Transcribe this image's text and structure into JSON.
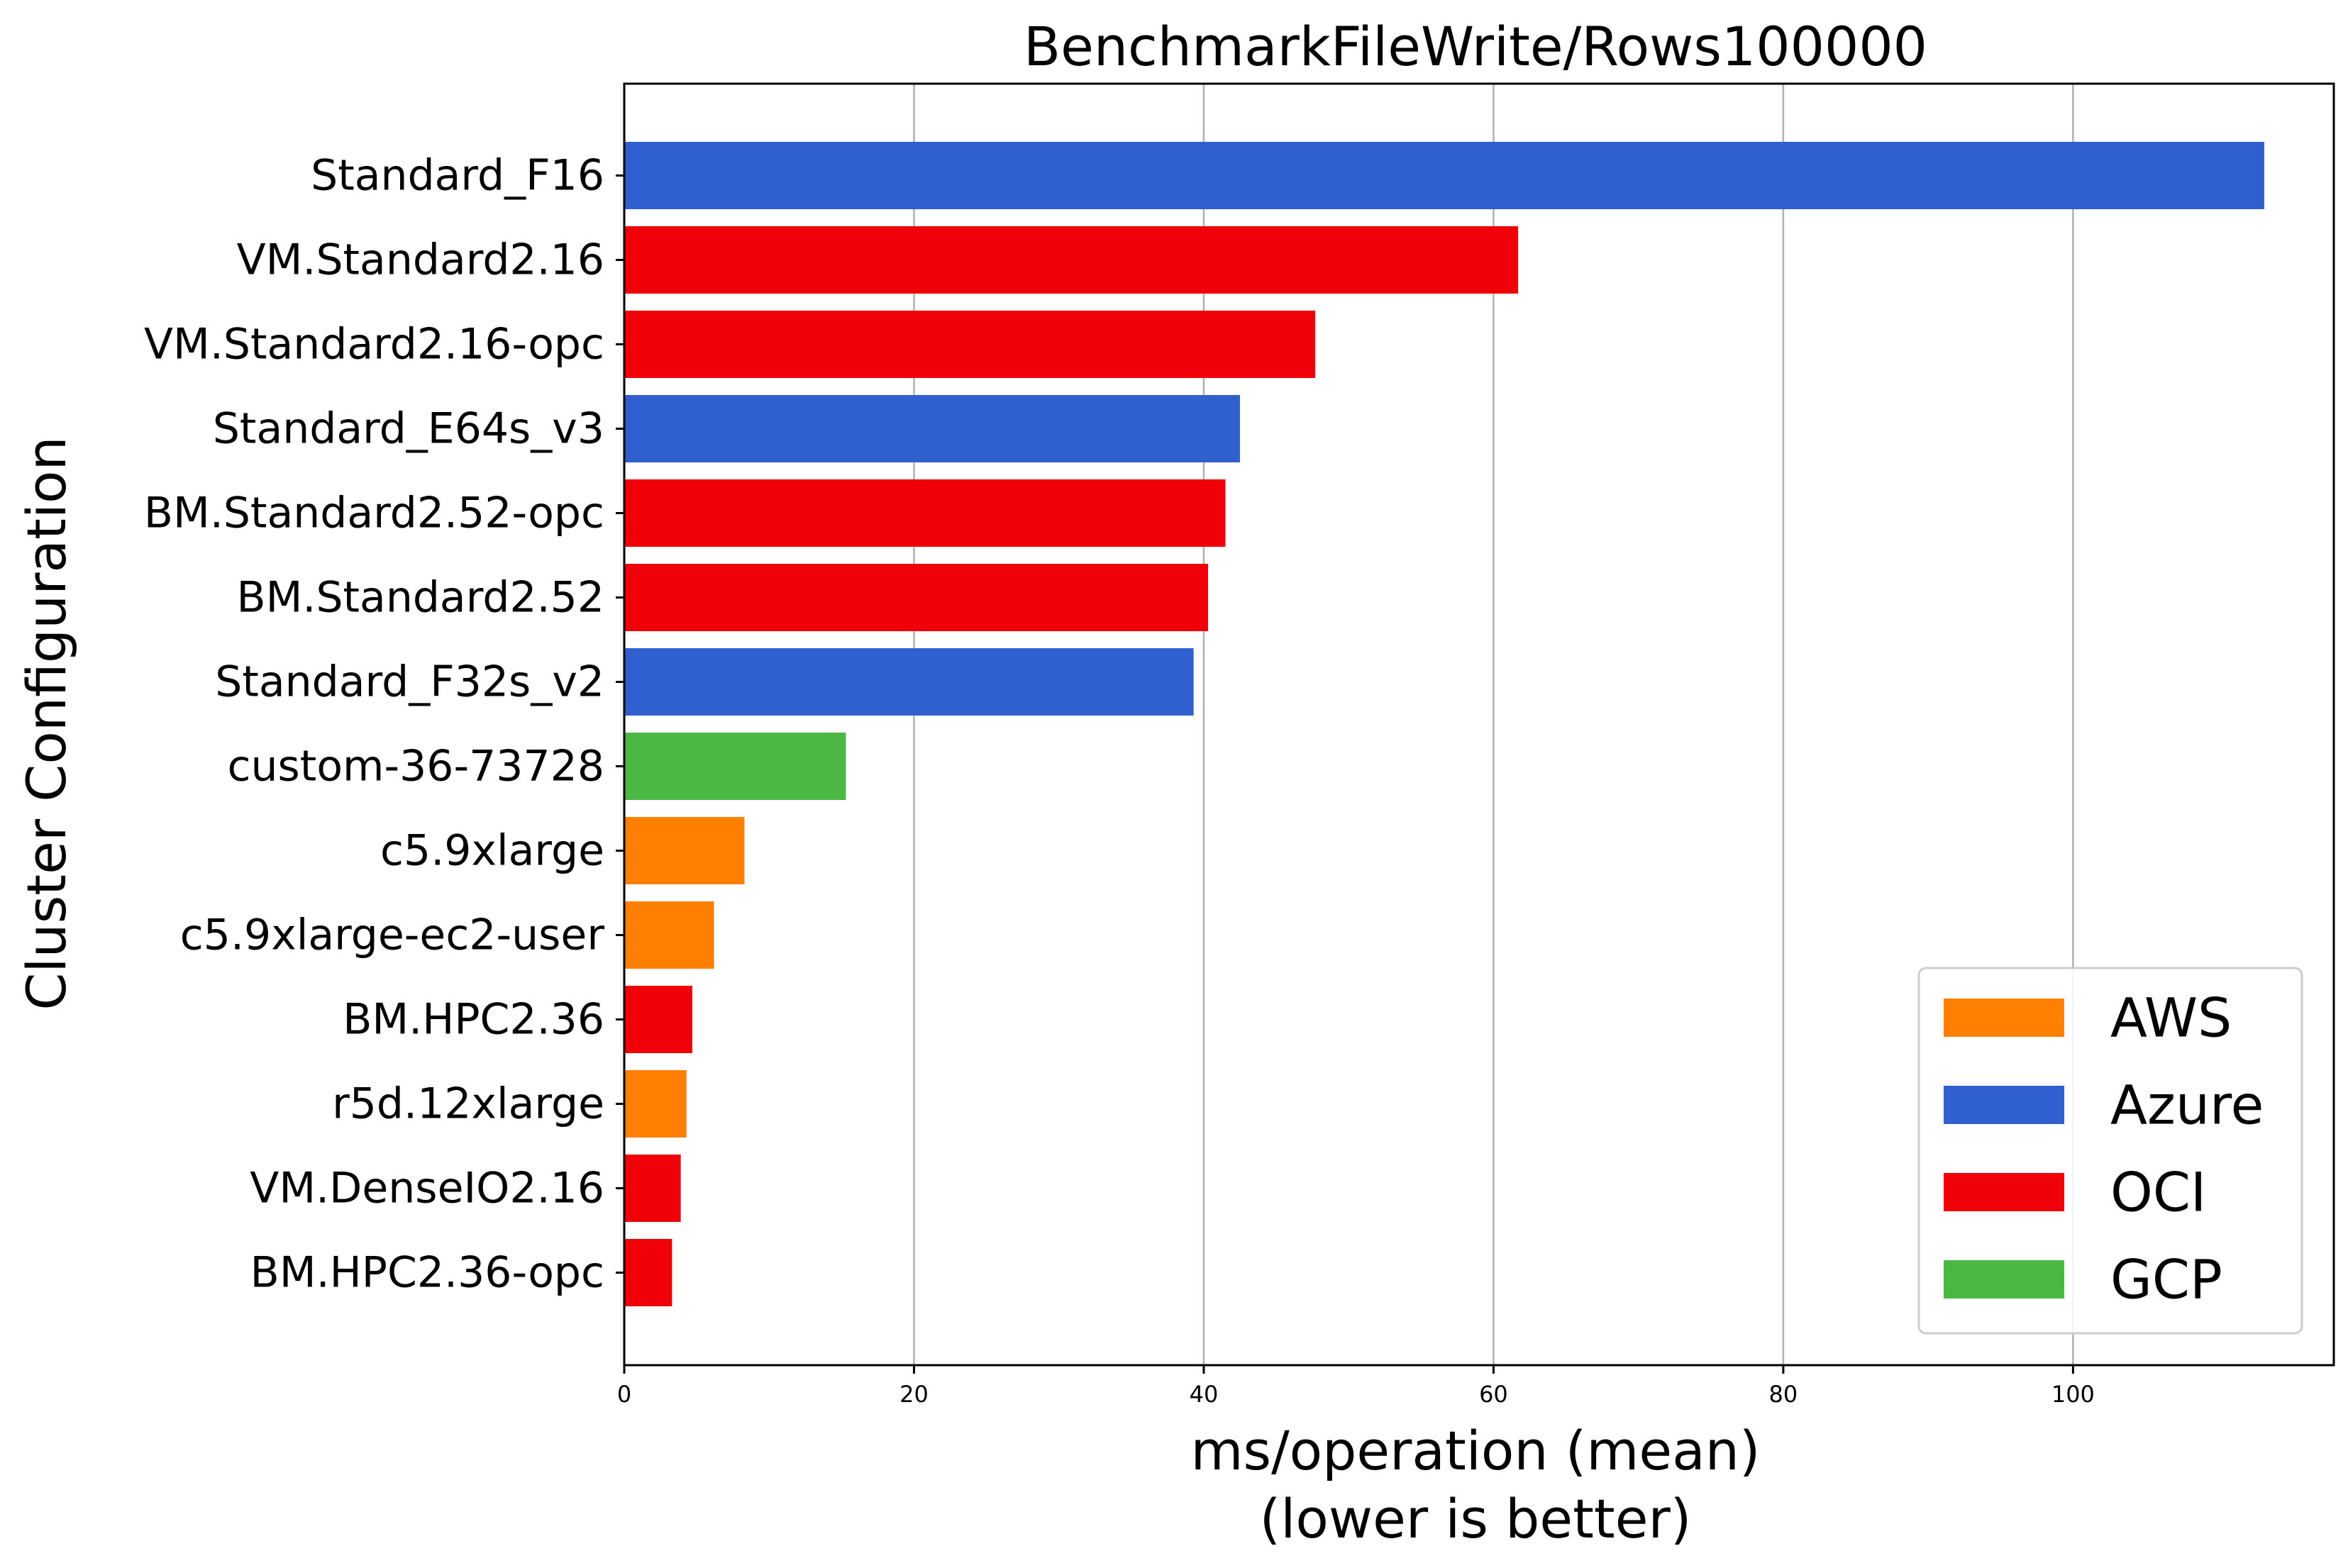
{
  "chart_data": {
    "type": "bar",
    "orientation": "horizontal",
    "title": "BenchmarkFileWrite/Rows100000",
    "xlabel_lines": [
      "ms/operation (mean)",
      "(lower is better)"
    ],
    "ylabel": "Cluster Configuration",
    "xlim": [
      0,
      118
    ],
    "xticks": [
      0,
      20,
      40,
      60,
      80,
      100
    ],
    "grid": "vertical",
    "legend_position": "lower-right",
    "providers": [
      {
        "name": "AWS",
        "color": "#ff8000"
      },
      {
        "name": "Azure",
        "color": "#3060d0"
      },
      {
        "name": "OCI",
        "color": "#f00008"
      },
      {
        "name": "GCP",
        "color": "#4cb844"
      }
    ],
    "bars": [
      {
        "label": "Standard_F16",
        "value": 113.2,
        "provider": "Azure"
      },
      {
        "label": "VM.Standard2.16",
        "value": 61.7,
        "provider": "OCI"
      },
      {
        "label": "VM.Standard2.16-opc",
        "value": 47.7,
        "provider": "OCI"
      },
      {
        "label": "Standard_E64s_v3",
        "value": 42.5,
        "provider": "Azure"
      },
      {
        "label": "BM.Standard2.52-opc",
        "value": 41.5,
        "provider": "OCI"
      },
      {
        "label": "BM.Standard2.52",
        "value": 40.3,
        "provider": "OCI"
      },
      {
        "label": "Standard_F32s_v2",
        "value": 39.3,
        "provider": "Azure"
      },
      {
        "label": "custom-36-73728",
        "value": 15.3,
        "provider": "GCP"
      },
      {
        "label": "c5.9xlarge",
        "value": 8.3,
        "provider": "AWS"
      },
      {
        "label": "c5.9xlarge-ec2-user",
        "value": 6.2,
        "provider": "AWS"
      },
      {
        "label": "BM.HPC2.36",
        "value": 4.7,
        "provider": "OCI"
      },
      {
        "label": "r5d.12xlarge",
        "value": 4.3,
        "provider": "AWS"
      },
      {
        "label": "VM.DenseIO2.16",
        "value": 3.9,
        "provider": "OCI"
      },
      {
        "label": "BM.HPC2.36-opc",
        "value": 3.3,
        "provider": "OCI"
      }
    ]
  }
}
